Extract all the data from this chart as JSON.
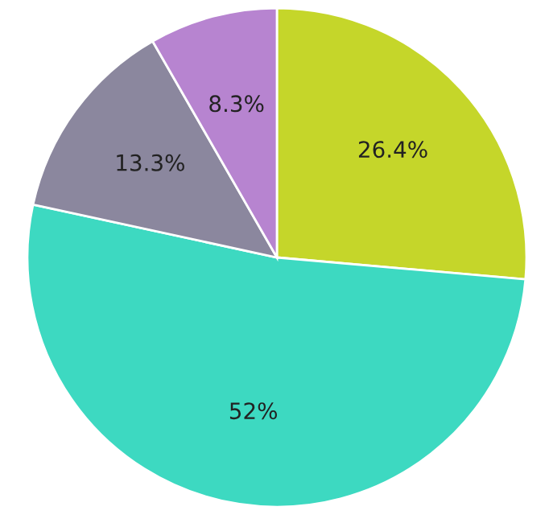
{
  "chart_data": {
    "type": "pie",
    "categories": [
      null,
      null,
      null,
      null
    ],
    "values": [
      26.4,
      52,
      13.3,
      8.3
    ],
    "colors": [
      "#c5d62a",
      "#3dd9c1",
      "#8b879e",
      "#b784d0"
    ],
    "value_labels": [
      "26.4%",
      "52%",
      "13.3%",
      "8.3%"
    ]
  }
}
